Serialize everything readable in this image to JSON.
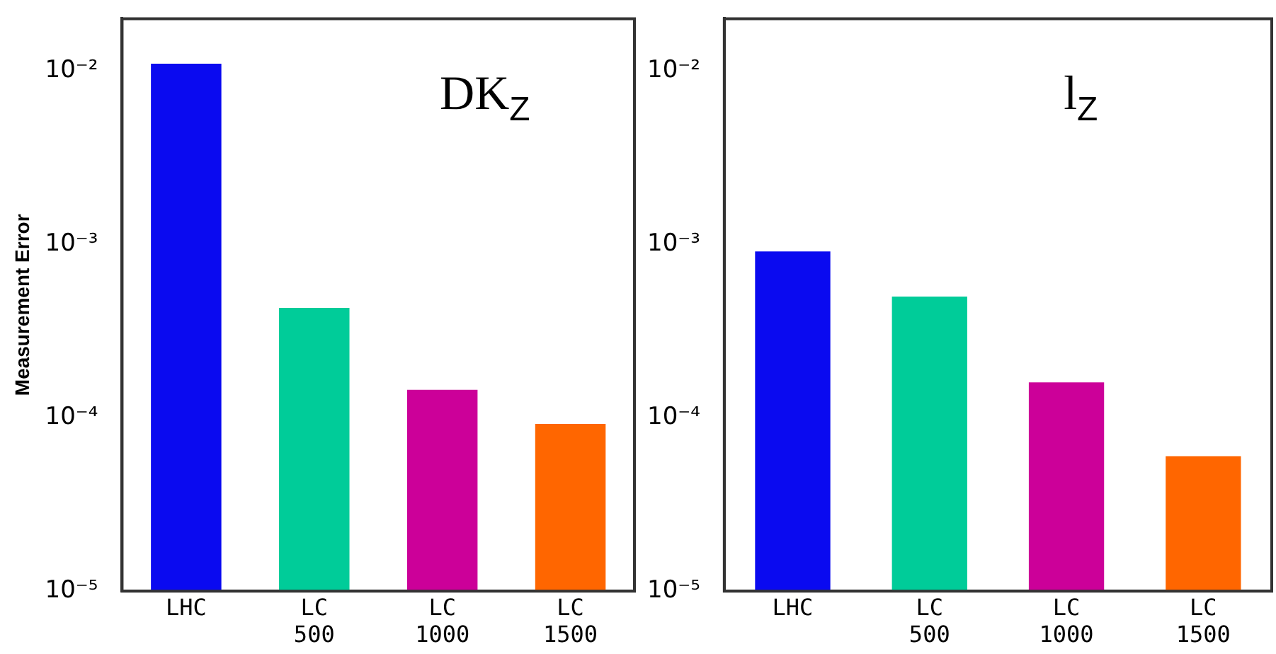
{
  "chart_data": [
    {
      "type": "bar",
      "title": "DK$_{Z}$",
      "ylabel": "Measurement Error",
      "log": true,
      "grid": false,
      "legend": false,
      "categories": [
        "LHC",
        "LC 500",
        "LC 1000",
        "LC 1500"
      ],
      "values": [
        0.011,
        0.00043,
        0.000145,
        9.2e-05
      ],
      "colors": [
        "#0a0af0",
        "#00cc99",
        "#cc0099",
        "#ff6600"
      ],
      "ylim": [
        1e-05,
        0.02
      ],
      "yticks": [
        {
          "value": 0.01,
          "label": "10⁻²"
        },
        {
          "value": 0.001,
          "label": "10⁻³"
        },
        {
          "value": 0.0001,
          "label": "10⁻⁴"
        },
        {
          "value": 1e-05,
          "label": "10⁻⁵"
        }
      ]
    },
    {
      "type": "bar",
      "title": "l$_{Z}$",
      "log": true,
      "grid": false,
      "legend": false,
      "categories": [
        "LHC",
        "LC 500",
        "LC 1000",
        "LC 1500"
      ],
      "values": [
        0.00091,
        0.0005,
        0.00016,
        6e-05
      ],
      "colors": [
        "#0a0af0",
        "#00cc99",
        "#cc0099",
        "#ff6600"
      ],
      "ylim": [
        1e-05,
        0.02
      ],
      "yticks": [
        {
          "value": 0.01,
          "label": "10⁻²"
        },
        {
          "value": 0.001,
          "label": "10⁻³"
        },
        {
          "value": 0.0001,
          "label": "10⁻⁴"
        },
        {
          "value": 1e-05,
          "label": "10⁻⁵"
        }
      ]
    }
  ]
}
